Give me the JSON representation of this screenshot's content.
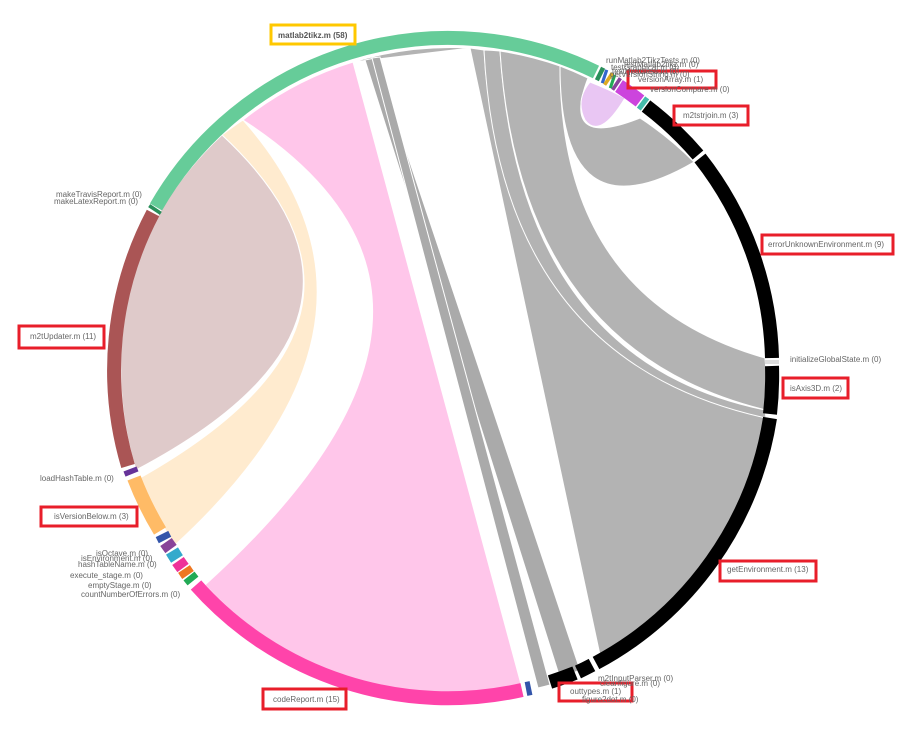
{
  "colors": {
    "highlight_primary": "#ffc800",
    "highlight_secondary": "#e81e2a",
    "label_text": "#666666"
  },
  "nodes": [
    {
      "id": "matlab2tikz",
      "label": "matlab2tikz.m (58)",
      "color": "#66cc99",
      "highlight": "primary"
    },
    {
      "id": "runMatlab2TikzTests",
      "label": "runMatlab2TikzTests.m (0)",
      "color": "#999999",
      "highlight": "none"
    },
    {
      "id": "testMatlab2tikz",
      "label": "testMatlab2tikz.m (0)",
      "color": "#999999",
      "highlight": "none"
    },
    {
      "id": "testGraphical",
      "label": "testGraphical.m (0)",
      "color": "#999999",
      "highlight": "none"
    },
    {
      "id": "testHeadless",
      "label": "testHeadless.m (0)",
      "color": "#999999",
      "highlight": "none"
    },
    {
      "id": "getVersionString",
      "label": "getVersionString.m (0)",
      "color": "#999999",
      "highlight": "none"
    },
    {
      "id": "versionArray",
      "label": "versionArray.m (1)",
      "color": "#cc44dd",
      "highlight": "secondary"
    },
    {
      "id": "versionCompare",
      "label": "versionCompare.m (0)",
      "color": "#999999",
      "highlight": "none"
    },
    {
      "id": "m2tstrjoin",
      "label": "m2tstrjoin.m (3)",
      "color": "#000000",
      "highlight": "secondary"
    },
    {
      "id": "errorUnknownEnvironment",
      "label": "errorUnknownEnvironment.m (9)",
      "color": "#000000",
      "highlight": "secondary"
    },
    {
      "id": "initializeGlobalState",
      "label": "initializeGlobalState.m (0)",
      "color": "#999999",
      "highlight": "none"
    },
    {
      "id": "isAxis3D",
      "label": "isAxis3D.m (2)",
      "color": "#000000",
      "highlight": "secondary"
    },
    {
      "id": "getEnvironment",
      "label": "getEnvironment.m (13)",
      "color": "#000000",
      "highlight": "secondary"
    },
    {
      "id": "m2tInputParser",
      "label": "m2tInputParser.m (0)",
      "color": "#999999",
      "highlight": "none"
    },
    {
      "id": "cleanfigure",
      "label": "cleanfigure.m (0)",
      "color": "#999999",
      "highlight": "none"
    },
    {
      "id": "outtypes",
      "label": "outtypes.m (1)",
      "color": "#000000",
      "highlight": "secondary"
    },
    {
      "id": "figure2dot",
      "label": "figure2dot.m (0)",
      "color": "#999999",
      "highlight": "none"
    },
    {
      "id": "codeReport",
      "label": "codeReport.m (15)",
      "color": "#ff44aa",
      "highlight": "secondary"
    },
    {
      "id": "countNumberOfErrors",
      "label": "countNumberOfErrors.m (0)",
      "color": "#999999",
      "highlight": "none"
    },
    {
      "id": "emptyStage",
      "label": "emptyStage.m (0)",
      "color": "#999999",
      "highlight": "none"
    },
    {
      "id": "executeStage",
      "label": "execute_stage.m (0)",
      "color": "#999999",
      "highlight": "none"
    },
    {
      "id": "hashTableName",
      "label": "hashTableName.m (0)",
      "color": "#999999",
      "highlight": "none"
    },
    {
      "id": "isEnvironment",
      "label": "isEnvironment.m (0)",
      "color": "#999999",
      "highlight": "none"
    },
    {
      "id": "isOctave",
      "label": "isOctave.m (0)",
      "color": "#999999",
      "highlight": "none"
    },
    {
      "id": "isVersionBelow",
      "label": "isVersionBelow.m (3)",
      "color": "#ffbb66",
      "highlight": "secondary"
    },
    {
      "id": "loadHashTable",
      "label": "loadHashTable.m (0)",
      "color": "#999999",
      "highlight": "none"
    },
    {
      "id": "m2tUpdater",
      "label": "m2tUpdater.m (11)",
      "color": "#aa5555",
      "highlight": "secondary"
    },
    {
      "id": "makeLatexReport",
      "label": "makeLatexReport.m (0)",
      "color": "#999999",
      "highlight": "none"
    },
    {
      "id": "makeTravisReport",
      "label": "makeTravisReport.m (0)",
      "color": "#999999",
      "highlight": "none"
    }
  ]
}
